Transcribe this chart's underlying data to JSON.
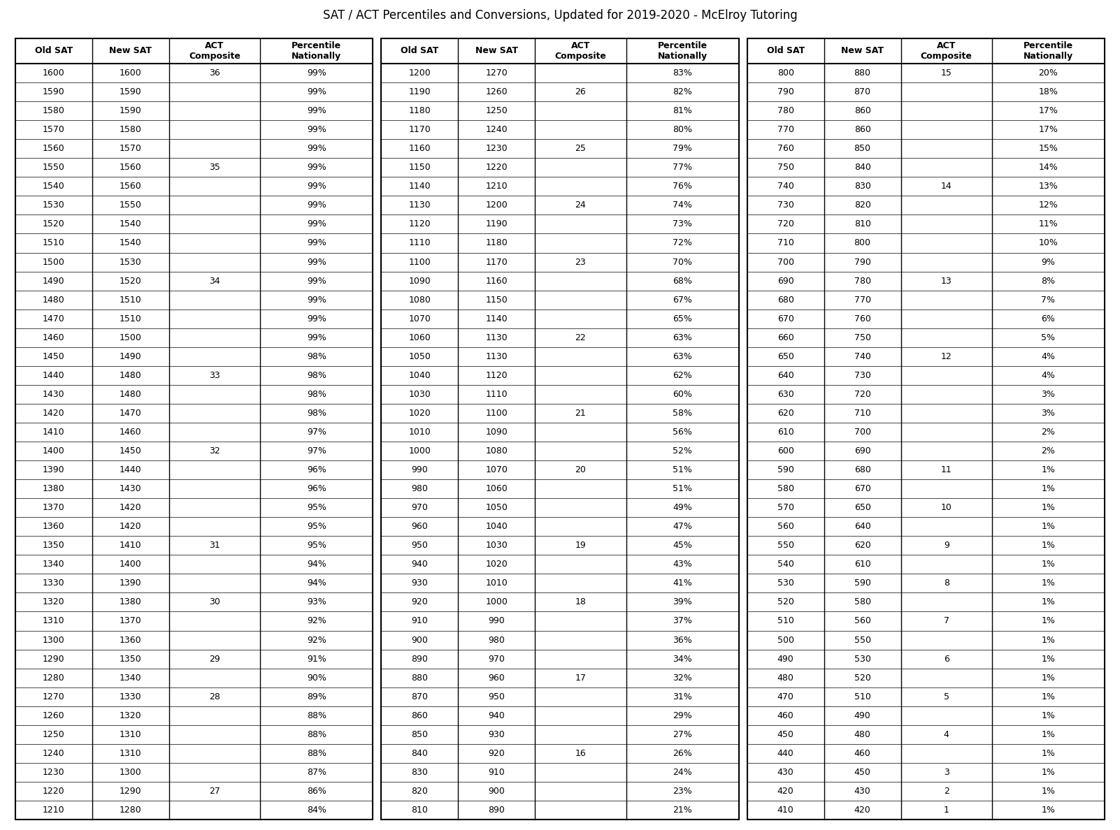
{
  "title": "SAT / ACT Percentiles and Conversions, Updated for 2019-2020 - McElroy Tutoring",
  "col_headers": [
    "Old SAT",
    "New SAT",
    "ACT\nComposite",
    "Percentile\nNationally"
  ],
  "col1": [
    [
      "1600",
      "1600",
      "36",
      "99%"
    ],
    [
      "1590",
      "1590",
      "",
      "99%"
    ],
    [
      "1580",
      "1590",
      "",
      "99%"
    ],
    [
      "1570",
      "1580",
      "",
      "99%"
    ],
    [
      "1560",
      "1570",
      "",
      "99%"
    ],
    [
      "1550",
      "1560",
      "35",
      "99%"
    ],
    [
      "1540",
      "1560",
      "",
      "99%"
    ],
    [
      "1530",
      "1550",
      "",
      "99%"
    ],
    [
      "1520",
      "1540",
      "",
      "99%"
    ],
    [
      "1510",
      "1540",
      "",
      "99%"
    ],
    [
      "1500",
      "1530",
      "",
      "99%"
    ],
    [
      "1490",
      "1520",
      "34",
      "99%"
    ],
    [
      "1480",
      "1510",
      "",
      "99%"
    ],
    [
      "1470",
      "1510",
      "",
      "99%"
    ],
    [
      "1460",
      "1500",
      "",
      "99%"
    ],
    [
      "1450",
      "1490",
      "",
      "98%"
    ],
    [
      "1440",
      "1480",
      "33",
      "98%"
    ],
    [
      "1430",
      "1480",
      "",
      "98%"
    ],
    [
      "1420",
      "1470",
      "",
      "98%"
    ],
    [
      "1410",
      "1460",
      "",
      "97%"
    ],
    [
      "1400",
      "1450",
      "32",
      "97%"
    ],
    [
      "1390",
      "1440",
      "",
      "96%"
    ],
    [
      "1380",
      "1430",
      "",
      "96%"
    ],
    [
      "1370",
      "1420",
      "",
      "95%"
    ],
    [
      "1360",
      "1420",
      "",
      "95%"
    ],
    [
      "1350",
      "1410",
      "31",
      "95%"
    ],
    [
      "1340",
      "1400",
      "",
      "94%"
    ],
    [
      "1330",
      "1390",
      "",
      "94%"
    ],
    [
      "1320",
      "1380",
      "30",
      "93%"
    ],
    [
      "1310",
      "1370",
      "",
      "92%"
    ],
    [
      "1300",
      "1360",
      "",
      "92%"
    ],
    [
      "1290",
      "1350",
      "29",
      "91%"
    ],
    [
      "1280",
      "1340",
      "",
      "90%"
    ],
    [
      "1270",
      "1330",
      "28",
      "89%"
    ],
    [
      "1260",
      "1320",
      "",
      "88%"
    ],
    [
      "1250",
      "1310",
      "",
      "88%"
    ],
    [
      "1240",
      "1310",
      "",
      "88%"
    ],
    [
      "1230",
      "1300",
      "",
      "87%"
    ],
    [
      "1220",
      "1290",
      "27",
      "86%"
    ],
    [
      "1210",
      "1280",
      "",
      "84%"
    ]
  ],
  "col2": [
    [
      "1200",
      "1270",
      "",
      "83%"
    ],
    [
      "1190",
      "1260",
      "26",
      "82%"
    ],
    [
      "1180",
      "1250",
      "",
      "81%"
    ],
    [
      "1170",
      "1240",
      "",
      "80%"
    ],
    [
      "1160",
      "1230",
      "25",
      "79%"
    ],
    [
      "1150",
      "1220",
      "",
      "77%"
    ],
    [
      "1140",
      "1210",
      "",
      "76%"
    ],
    [
      "1130",
      "1200",
      "24",
      "74%"
    ],
    [
      "1120",
      "1190",
      "",
      "73%"
    ],
    [
      "1110",
      "1180",
      "",
      "72%"
    ],
    [
      "1100",
      "1170",
      "23",
      "70%"
    ],
    [
      "1090",
      "1160",
      "",
      "68%"
    ],
    [
      "1080",
      "1150",
      "",
      "67%"
    ],
    [
      "1070",
      "1140",
      "",
      "65%"
    ],
    [
      "1060",
      "1130",
      "22",
      "63%"
    ],
    [
      "1050",
      "1130",
      "",
      "63%"
    ],
    [
      "1040",
      "1120",
      "",
      "62%"
    ],
    [
      "1030",
      "1110",
      "",
      "60%"
    ],
    [
      "1020",
      "1100",
      "21",
      "58%"
    ],
    [
      "1010",
      "1090",
      "",
      "56%"
    ],
    [
      "1000",
      "1080",
      "",
      "52%"
    ],
    [
      "990",
      "1070",
      "20",
      "51%"
    ],
    [
      "980",
      "1060",
      "",
      "51%"
    ],
    [
      "970",
      "1050",
      "",
      "49%"
    ],
    [
      "960",
      "1040",
      "",
      "47%"
    ],
    [
      "950",
      "1030",
      "19",
      "45%"
    ],
    [
      "940",
      "1020",
      "",
      "43%"
    ],
    [
      "930",
      "1010",
      "",
      "41%"
    ],
    [
      "920",
      "1000",
      "18",
      "39%"
    ],
    [
      "910",
      "990",
      "",
      "37%"
    ],
    [
      "900",
      "980",
      "",
      "36%"
    ],
    [
      "890",
      "970",
      "",
      "34%"
    ],
    [
      "880",
      "960",
      "17",
      "32%"
    ],
    [
      "870",
      "950",
      "",
      "31%"
    ],
    [
      "860",
      "940",
      "",
      "29%"
    ],
    [
      "850",
      "930",
      "",
      "27%"
    ],
    [
      "840",
      "920",
      "16",
      "26%"
    ],
    [
      "830",
      "910",
      "",
      "24%"
    ],
    [
      "820",
      "900",
      "",
      "23%"
    ],
    [
      "810",
      "890",
      "",
      "21%"
    ]
  ],
  "col3": [
    [
      "800",
      "880",
      "15",
      "20%"
    ],
    [
      "790",
      "870",
      "",
      "18%"
    ],
    [
      "780",
      "860",
      "",
      "17%"
    ],
    [
      "770",
      "860",
      "",
      "17%"
    ],
    [
      "760",
      "850",
      "",
      "15%"
    ],
    [
      "750",
      "840",
      "",
      "14%"
    ],
    [
      "740",
      "830",
      "14",
      "13%"
    ],
    [
      "730",
      "820",
      "",
      "12%"
    ],
    [
      "720",
      "810",
      "",
      "11%"
    ],
    [
      "710",
      "800",
      "",
      "10%"
    ],
    [
      "700",
      "790",
      "",
      "9%"
    ],
    [
      "690",
      "780",
      "13",
      "8%"
    ],
    [
      "680",
      "770",
      "",
      "7%"
    ],
    [
      "670",
      "760",
      "",
      "6%"
    ],
    [
      "660",
      "750",
      "",
      "5%"
    ],
    [
      "650",
      "740",
      "12",
      "4%"
    ],
    [
      "640",
      "730",
      "",
      "4%"
    ],
    [
      "630",
      "720",
      "",
      "3%"
    ],
    [
      "620",
      "710",
      "",
      "3%"
    ],
    [
      "610",
      "700",
      "",
      "2%"
    ],
    [
      "600",
      "690",
      "",
      "2%"
    ],
    [
      "590",
      "680",
      "11",
      "1%"
    ],
    [
      "580",
      "670",
      "",
      "1%"
    ],
    [
      "570",
      "650",
      "10",
      "1%"
    ],
    [
      "560",
      "640",
      "",
      "1%"
    ],
    [
      "550",
      "620",
      "9",
      "1%"
    ],
    [
      "540",
      "610",
      "",
      "1%"
    ],
    [
      "530",
      "590",
      "8",
      "1%"
    ],
    [
      "520",
      "580",
      "",
      "1%"
    ],
    [
      "510",
      "560",
      "7",
      "1%"
    ],
    [
      "500",
      "550",
      "",
      "1%"
    ],
    [
      "490",
      "530",
      "6",
      "1%"
    ],
    [
      "480",
      "520",
      "",
      "1%"
    ],
    [
      "470",
      "510",
      "5",
      "1%"
    ],
    [
      "460",
      "490",
      "",
      "1%"
    ],
    [
      "450",
      "480",
      "4",
      "1%"
    ],
    [
      "440",
      "460",
      "",
      "1%"
    ],
    [
      "430",
      "450",
      "3",
      "1%"
    ],
    [
      "420",
      "430",
      "2",
      "1%"
    ],
    [
      "410",
      "420",
      "1",
      "1%"
    ]
  ]
}
